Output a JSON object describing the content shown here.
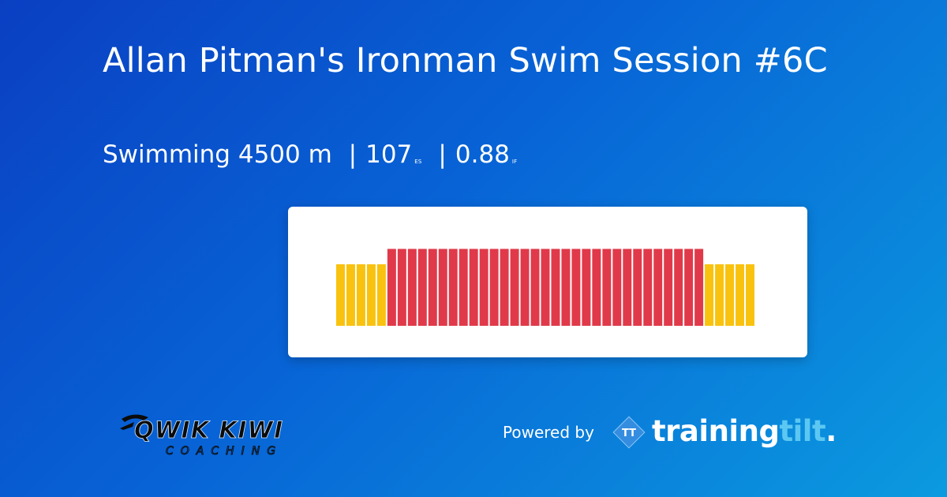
{
  "colors": {
    "background_start": "#0a3fc2",
    "background_end": "#0b9adf",
    "zone_yellow": "#f9c20f",
    "zone_red": "#e03a4a",
    "card": "#ffffff"
  },
  "header": {
    "title": "Allan Pitman's Ironman Swim Session #6C",
    "sport": "Swimming",
    "distance": "4500 m",
    "separator": "|",
    "es_value": "107",
    "es_unit": "ES",
    "if_value": "0.88",
    "if_unit": "IF"
  },
  "workout": {
    "intervals": [
      {
        "zone": "yellow",
        "level": 0.6
      },
      {
        "zone": "yellow",
        "level": 0.6
      },
      {
        "zone": "yellow",
        "level": 0.6
      },
      {
        "zone": "yellow",
        "level": 0.6
      },
      {
        "zone": "yellow",
        "level": 0.6
      },
      {
        "zone": "red",
        "level": 0.75
      },
      {
        "zone": "red",
        "level": 0.75
      },
      {
        "zone": "red",
        "level": 0.75
      },
      {
        "zone": "red",
        "level": 0.75
      },
      {
        "zone": "red",
        "level": 0.75
      },
      {
        "zone": "red",
        "level": 0.75
      },
      {
        "zone": "red",
        "level": 0.75
      },
      {
        "zone": "red",
        "level": 0.75
      },
      {
        "zone": "red",
        "level": 0.75
      },
      {
        "zone": "red",
        "level": 0.75
      },
      {
        "zone": "red",
        "level": 0.75
      },
      {
        "zone": "red",
        "level": 0.75
      },
      {
        "zone": "red",
        "level": 0.75
      },
      {
        "zone": "red",
        "level": 0.75
      },
      {
        "zone": "red",
        "level": 0.75
      },
      {
        "zone": "red",
        "level": 0.75
      },
      {
        "zone": "red",
        "level": 0.75
      },
      {
        "zone": "red",
        "level": 0.75
      },
      {
        "zone": "red",
        "level": 0.75
      },
      {
        "zone": "red",
        "level": 0.75
      },
      {
        "zone": "red",
        "level": 0.75
      },
      {
        "zone": "red",
        "level": 0.75
      },
      {
        "zone": "red",
        "level": 0.75
      },
      {
        "zone": "red",
        "level": 0.75
      },
      {
        "zone": "red",
        "level": 0.75
      },
      {
        "zone": "red",
        "level": 0.75
      },
      {
        "zone": "red",
        "level": 0.75
      },
      {
        "zone": "red",
        "level": 0.75
      },
      {
        "zone": "red",
        "level": 0.75
      },
      {
        "zone": "red",
        "level": 0.75
      },
      {
        "zone": "red",
        "level": 0.75
      },
      {
        "zone": "yellow",
        "level": 0.6
      },
      {
        "zone": "yellow",
        "level": 0.6
      },
      {
        "zone": "yellow",
        "level": 0.6
      },
      {
        "zone": "yellow",
        "level": 0.6
      },
      {
        "zone": "yellow",
        "level": 0.6
      }
    ]
  },
  "footer": {
    "coach_logo_line1": "QWIK KIWI",
    "coach_logo_line2": "COACHING",
    "powered_by": "Powered by",
    "badge_icon": "tt-diamond-icon",
    "badge_letters": "TT",
    "brand_part_a": "training",
    "brand_part_b": "tilt",
    "brand_dot": "."
  }
}
